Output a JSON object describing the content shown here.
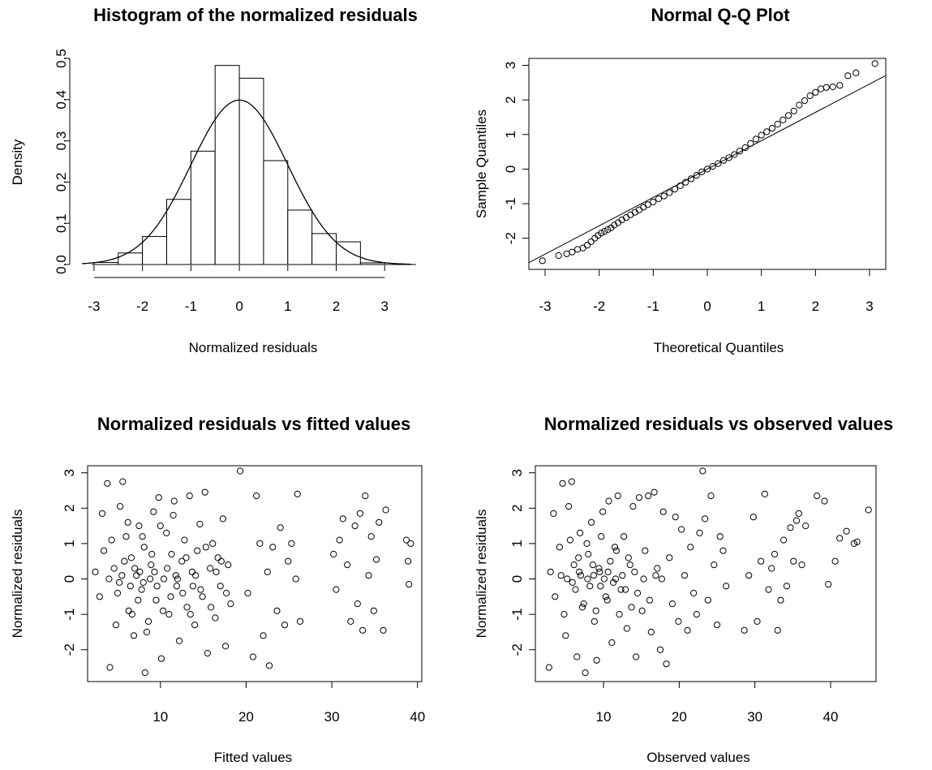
{
  "chart_data": [
    {
      "type": "histogram",
      "title": "Histogram of the normalized residuals",
      "xlabel": "Normalized residuals",
      "ylabel": "Density",
      "xlim": [
        -3.3,
        3.8
      ],
      "ylim": [
        0,
        0.5
      ],
      "xticks": [
        -3,
        -2,
        -1,
        0,
        1,
        2,
        3
      ],
      "yticks": [
        0.0,
        0.1,
        0.2,
        0.3,
        0.4,
        0.5
      ],
      "ytick_labels": [
        "0.0",
        "0.1",
        "0.2",
        "0.3",
        "0.4",
        "0.5"
      ],
      "bins": [
        {
          "from": -3.0,
          "to": -2.5,
          "density": 0.005
        },
        {
          "from": -2.5,
          "to": -2.0,
          "density": 0.028
        },
        {
          "from": -2.0,
          "to": -1.5,
          "density": 0.068
        },
        {
          "from": -1.5,
          "to": -1.0,
          "density": 0.158
        },
        {
          "from": -1.0,
          "to": -0.5,
          "density": 0.275
        },
        {
          "from": -0.5,
          "to": 0.0,
          "density": 0.483
        },
        {
          "from": 0.0,
          "to": 0.5,
          "density": 0.452
        },
        {
          "from": 0.5,
          "to": 1.0,
          "density": 0.252
        },
        {
          "from": 1.0,
          "to": 1.5,
          "density": 0.132
        },
        {
          "from": 1.5,
          "to": 2.0,
          "density": 0.075
        },
        {
          "from": 2.0,
          "to": 2.5,
          "density": 0.055
        },
        {
          "from": 2.5,
          "to": 3.0,
          "density": 0.004
        }
      ],
      "overlay": "standard normal density curve"
    },
    {
      "type": "scatter",
      "title": "Normal Q-Q Plot",
      "xlabel": "Theoretical Quantiles",
      "ylabel": "Sample Quantiles",
      "xlim": [
        -3.3,
        3.3
      ],
      "ylim": [
        -2.9,
        3.2
      ],
      "xticks": [
        -3,
        -2,
        -1,
        0,
        1,
        2,
        3
      ],
      "yticks": [
        -2,
        -1,
        0,
        1,
        2,
        3
      ],
      "reference_line": {
        "intercept": 0.0,
        "slope": 0.82
      },
      "points": [
        [
          -3.05,
          -2.65
        ],
        [
          -2.75,
          -2.5
        ],
        [
          -2.6,
          -2.45
        ],
        [
          -2.5,
          -2.4
        ],
        [
          -2.4,
          -2.32
        ],
        [
          -2.3,
          -2.28
        ],
        [
          -2.22,
          -2.2
        ],
        [
          -2.15,
          -2.1
        ],
        [
          -2.08,
          -2.0
        ],
        [
          -2.02,
          -1.92
        ],
        [
          -1.96,
          -1.85
        ],
        [
          -1.9,
          -1.8
        ],
        [
          -1.84,
          -1.75
        ],
        [
          -1.78,
          -1.7
        ],
        [
          -1.72,
          -1.62
        ],
        [
          -1.65,
          -1.55
        ],
        [
          -1.58,
          -1.47
        ],
        [
          -1.5,
          -1.4
        ],
        [
          -1.42,
          -1.32
        ],
        [
          -1.34,
          -1.25
        ],
        [
          -1.26,
          -1.18
        ],
        [
          -1.18,
          -1.1
        ],
        [
          -1.1,
          -1.03
        ],
        [
          -1.0,
          -0.95
        ],
        [
          -0.9,
          -0.86
        ],
        [
          -0.8,
          -0.78
        ],
        [
          -0.7,
          -0.68
        ],
        [
          -0.6,
          -0.58
        ],
        [
          -0.5,
          -0.48
        ],
        [
          -0.4,
          -0.38
        ],
        [
          -0.3,
          -0.28
        ],
        [
          -0.2,
          -0.18
        ],
        [
          -0.1,
          -0.08
        ],
        [
          0.0,
          0.0
        ],
        [
          0.1,
          0.08
        ],
        [
          0.2,
          0.16
        ],
        [
          0.3,
          0.25
        ],
        [
          0.4,
          0.33
        ],
        [
          0.5,
          0.42
        ],
        [
          0.6,
          0.52
        ],
        [
          0.7,
          0.62
        ],
        [
          0.8,
          0.74
        ],
        [
          0.9,
          0.87
        ],
        [
          1.0,
          0.98
        ],
        [
          1.1,
          1.08
        ],
        [
          1.2,
          1.18
        ],
        [
          1.3,
          1.3
        ],
        [
          1.4,
          1.42
        ],
        [
          1.5,
          1.55
        ],
        [
          1.6,
          1.68
        ],
        [
          1.7,
          1.85
        ],
        [
          1.8,
          1.98
        ],
        [
          1.9,
          2.12
        ],
        [
          2.0,
          2.22
        ],
        [
          2.1,
          2.32
        ],
        [
          2.2,
          2.36
        ],
        [
          2.32,
          2.38
        ],
        [
          2.45,
          2.42
        ],
        [
          2.6,
          2.7
        ],
        [
          2.75,
          2.78
        ],
        [
          3.1,
          3.05
        ]
      ]
    },
    {
      "type": "scatter",
      "title": "Normalized residuals vs fitted values",
      "xlabel": "Fitted values",
      "ylabel": "Normalized residuals",
      "xlim": [
        1.5,
        40.5
      ],
      "ylim": [
        -2.9,
        3.2
      ],
      "xticks": [
        10,
        20,
        30,
        40
      ],
      "yticks": [
        -2,
        -1,
        0,
        1,
        2,
        3
      ],
      "points": [
        [
          3.2,
          1.85
        ],
        [
          3.8,
          2.7
        ],
        [
          4.1,
          -2.5
        ],
        [
          4.6,
          0.3
        ],
        [
          5.0,
          -0.4
        ],
        [
          5.3,
          2.05
        ],
        [
          5.6,
          2.75
        ],
        [
          6.0,
          1.2
        ],
        [
          6.3,
          -0.9
        ],
        [
          6.6,
          0.6
        ],
        [
          6.9,
          -1.6
        ],
        [
          7.2,
          0.1
        ],
        [
          7.5,
          1.5
        ],
        [
          7.8,
          -0.3
        ],
        [
          8.1,
          0.9
        ],
        [
          8.2,
          -2.65
        ],
        [
          8.6,
          -1.2
        ],
        [
          8.9,
          0.4
        ],
        [
          9.2,
          1.9
        ],
        [
          9.5,
          -0.6
        ],
        [
          9.8,
          2.3
        ],
        [
          10.1,
          -2.25
        ],
        [
          10.4,
          0.0
        ],
        [
          10.7,
          1.3
        ],
        [
          11.0,
          -1.0
        ],
        [
          11.3,
          0.7
        ],
        [
          11.6,
          2.2
        ],
        [
          11.9,
          -0.2
        ],
        [
          12.2,
          -1.75
        ],
        [
          12.5,
          0.5
        ],
        [
          12.8,
          1.1
        ],
        [
          13.1,
          -0.8
        ],
        [
          13.4,
          2.35
        ],
        [
          13.7,
          0.2
        ],
        [
          14.0,
          -1.3
        ],
        [
          14.3,
          0.8
        ],
        [
          14.6,
          1.55
        ],
        [
          14.9,
          -0.5
        ],
        [
          15.2,
          2.45
        ],
        [
          15.5,
          -2.1
        ],
        [
          15.8,
          0.3
        ],
        [
          16.1,
          1.0
        ],
        [
          16.4,
          -1.1
        ],
        [
          16.7,
          0.6
        ],
        [
          17.0,
          -0.2
        ],
        [
          17.3,
          1.7
        ],
        [
          17.6,
          -1.9
        ],
        [
          17.9,
          0.4
        ],
        [
          18.2,
          -0.7
        ],
        [
          19.3,
          3.05
        ],
        [
          20.2,
          -0.4
        ],
        [
          20.8,
          -2.2
        ],
        [
          21.2,
          2.35
        ],
        [
          21.6,
          1.0
        ],
        [
          22.0,
          -1.6
        ],
        [
          22.5,
          0.2
        ],
        [
          22.7,
          -2.45
        ],
        [
          23.1,
          0.9
        ],
        [
          23.6,
          -0.9
        ],
        [
          24.0,
          1.45
        ],
        [
          24.5,
          -1.3
        ],
        [
          24.9,
          0.5
        ],
        [
          25.3,
          1.0
        ],
        [
          25.8,
          0.0
        ],
        [
          26.0,
          2.4
        ],
        [
          26.3,
          -1.2
        ],
        [
          30.2,
          0.7
        ],
        [
          30.5,
          -0.3
        ],
        [
          30.9,
          1.1
        ],
        [
          31.3,
          1.7
        ],
        [
          31.8,
          0.4
        ],
        [
          32.2,
          -1.2
        ],
        [
          32.7,
          1.5
        ],
        [
          33.0,
          -0.7
        ],
        [
          33.3,
          1.85
        ],
        [
          33.6,
          -1.45
        ],
        [
          33.9,
          2.35
        ],
        [
          34.3,
          0.1
        ],
        [
          34.6,
          1.2
        ],
        [
          34.9,
          -0.9
        ],
        [
          35.2,
          0.55
        ],
        [
          35.5,
          1.6
        ],
        [
          36.0,
          -1.45
        ],
        [
          36.3,
          1.95
        ],
        [
          38.7,
          1.1
        ],
        [
          38.9,
          0.5
        ],
        [
          39.0,
          -0.15
        ],
        [
          39.2,
          1.0
        ],
        [
          2.4,
          0.2
        ],
        [
          2.9,
          -0.5
        ],
        [
          3.4,
          0.8
        ],
        [
          4.3,
          1.1
        ],
        [
          4.8,
          -1.3
        ],
        [
          5.2,
          -0.1
        ],
        [
          5.8,
          0.5
        ],
        [
          6.2,
          1.6
        ],
        [
          6.7,
          -1.0
        ],
        [
          7.0,
          0.3
        ],
        [
          7.4,
          -0.6
        ],
        [
          7.9,
          1.2
        ],
        [
          8.4,
          -1.5
        ],
        [
          8.8,
          0.0
        ],
        [
          9.0,
          0.7
        ],
        [
          9.6,
          -0.2
        ],
        [
          10.0,
          1.5
        ],
        [
          10.3,
          -0.9
        ],
        [
          10.8,
          0.3
        ],
        [
          11.2,
          -0.5
        ],
        [
          11.5,
          1.8
        ],
        [
          12.0,
          0.0
        ],
        [
          12.6,
          -0.4
        ],
        [
          13.0,
          0.6
        ],
        [
          13.5,
          -1.0
        ],
        [
          14.1,
          0.1
        ],
        [
          14.7,
          -0.3
        ],
        [
          15.3,
          0.9
        ],
        [
          15.9,
          -0.8
        ],
        [
          16.5,
          0.2
        ],
        [
          17.1,
          0.5
        ],
        [
          17.7,
          -0.4
        ],
        [
          4.0,
          0.0
        ],
        [
          5.5,
          0.1
        ],
        [
          6.5,
          -0.2
        ],
        [
          7.6,
          0.2
        ],
        [
          8.0,
          -0.1
        ],
        [
          9.3,
          0.2
        ],
        [
          11.8,
          0.1
        ],
        [
          13.8,
          -0.2
        ]
      ]
    },
    {
      "type": "scatter",
      "title": "Normalized residuals vs observed values",
      "xlabel": "Observed values",
      "ylabel": "Normalized residuals",
      "xlim": [
        1.0,
        46.0
      ],
      "ylim": [
        -2.9,
        3.2
      ],
      "xticks": [
        10,
        20,
        30,
        40
      ],
      "yticks": [
        -2,
        -1,
        0,
        1,
        2,
        3
      ],
      "points": [
        [
          2.8,
          -2.5
        ],
        [
          3.4,
          1.85
        ],
        [
          4.6,
          2.7
        ],
        [
          5.0,
          -1.6
        ],
        [
          5.4,
          2.05
        ],
        [
          5.8,
          2.75
        ],
        [
          6.1,
          0.4
        ],
        [
          6.5,
          -2.2
        ],
        [
          6.9,
          1.3
        ],
        [
          7.2,
          -0.8
        ],
        [
          7.6,
          -2.65
        ],
        [
          8.0,
          0.7
        ],
        [
          8.4,
          1.6
        ],
        [
          8.8,
          -1.2
        ],
        [
          9.1,
          -2.3
        ],
        [
          9.5,
          0.2
        ],
        [
          9.9,
          1.9
        ],
        [
          10.3,
          -0.5
        ],
        [
          10.7,
          2.2
        ],
        [
          11.1,
          -1.8
        ],
        [
          11.5,
          0.9
        ],
        [
          11.9,
          2.35
        ],
        [
          12.3,
          -0.3
        ],
        [
          12.7,
          1.2
        ],
        [
          13.1,
          -1.4
        ],
        [
          13.5,
          0.4
        ],
        [
          13.9,
          2.05
        ],
        [
          14.3,
          -2.2
        ],
        [
          14.7,
          2.3
        ],
        [
          15.1,
          -0.9
        ],
        [
          15.5,
          0.8
        ],
        [
          15.9,
          2.35
        ],
        [
          16.3,
          -1.5
        ],
        [
          16.7,
          2.45
        ],
        [
          17.1,
          0.3
        ],
        [
          17.5,
          -2.0
        ],
        [
          17.9,
          1.9
        ],
        [
          18.3,
          -2.4
        ],
        [
          18.7,
          0.6
        ],
        [
          19.1,
          -0.7
        ],
        [
          19.5,
          1.75
        ],
        [
          19.9,
          -1.2
        ],
        [
          20.3,
          1.4
        ],
        [
          20.7,
          0.1
        ],
        [
          21.1,
          -1.45
        ],
        [
          21.5,
          0.9
        ],
        [
          21.9,
          -0.4
        ],
        [
          22.3,
          -1.0
        ],
        [
          22.7,
          1.3
        ],
        [
          23.1,
          3.05
        ],
        [
          23.4,
          1.7
        ],
        [
          23.8,
          -0.6
        ],
        [
          24.2,
          2.35
        ],
        [
          24.6,
          0.4
        ],
        [
          25.0,
          -1.3
        ],
        [
          25.4,
          1.2
        ],
        [
          25.8,
          0.8
        ],
        [
          26.2,
          -0.2
        ],
        [
          28.6,
          -1.45
        ],
        [
          29.2,
          0.1
        ],
        [
          29.8,
          1.75
        ],
        [
          30.3,
          -1.2
        ],
        [
          30.8,
          0.5
        ],
        [
          31.3,
          2.4
        ],
        [
          31.8,
          -0.3
        ],
        [
          32.2,
          0.3
        ],
        [
          32.6,
          0.7
        ],
        [
          33.0,
          -1.45
        ],
        [
          33.4,
          -0.6
        ],
        [
          33.8,
          1.1
        ],
        [
          34.2,
          -0.2
        ],
        [
          34.7,
          1.45
        ],
        [
          35.1,
          0.5
        ],
        [
          35.5,
          1.65
        ],
        [
          35.8,
          1.85
        ],
        [
          36.2,
          0.4
        ],
        [
          36.7,
          1.5
        ],
        [
          38.2,
          2.35
        ],
        [
          39.2,
          2.2
        ],
        [
          39.7,
          -0.15
        ],
        [
          40.6,
          0.5
        ],
        [
          41.2,
          1.15
        ],
        [
          42.1,
          1.35
        ],
        [
          43.1,
          1.0
        ],
        [
          43.5,
          1.05
        ],
        [
          45.0,
          1.95
        ],
        [
          3.0,
          0.2
        ],
        [
          3.6,
          -0.5
        ],
        [
          4.2,
          0.9
        ],
        [
          4.8,
          -1.0
        ],
        [
          5.2,
          0.0
        ],
        [
          5.6,
          1.1
        ],
        [
          6.3,
          -0.3
        ],
        [
          6.7,
          0.6
        ],
        [
          7.0,
          0.1
        ],
        [
          7.4,
          -0.7
        ],
        [
          7.8,
          1.0
        ],
        [
          8.2,
          -0.2
        ],
        [
          8.6,
          0.4
        ],
        [
          9.0,
          -0.9
        ],
        [
          9.4,
          0.3
        ],
        [
          9.7,
          1.2
        ],
        [
          10.1,
          0.0
        ],
        [
          10.5,
          -0.6
        ],
        [
          10.9,
          0.5
        ],
        [
          11.3,
          -0.1
        ],
        [
          11.7,
          0.8
        ],
        [
          12.1,
          -1.0
        ],
        [
          12.5,
          0.1
        ],
        [
          12.9,
          -0.3
        ],
        [
          13.3,
          0.6
        ],
        [
          13.7,
          -0.8
        ],
        [
          14.1,
          0.2
        ],
        [
          14.5,
          -0.4
        ],
        [
          15.3,
          0.0
        ],
        [
          16.1,
          -0.6
        ],
        [
          16.9,
          0.1
        ],
        [
          17.7,
          0.0
        ],
        [
          4.4,
          0.1
        ],
        [
          5.9,
          -0.1
        ],
        [
          6.8,
          0.2
        ],
        [
          7.9,
          0.0
        ],
        [
          8.7,
          0.1
        ],
        [
          9.6,
          -0.2
        ],
        [
          10.6,
          0.2
        ],
        [
          11.6,
          0.0
        ]
      ]
    }
  ]
}
